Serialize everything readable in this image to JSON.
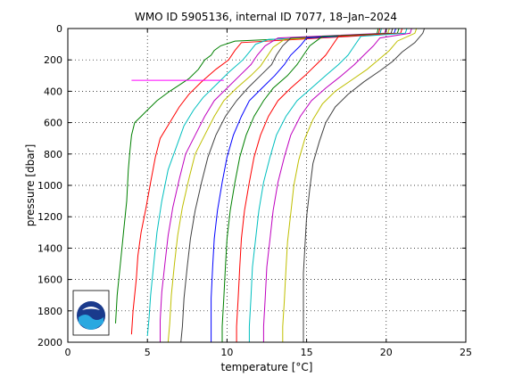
{
  "chart_data": {
    "type": "line",
    "title": "WMO ID 5905136, internal ID 7077, 18–Jan–2024",
    "xlabel": "temperature [°C]",
    "ylabel": "pressure [dbar]",
    "xlim": [
      0,
      25
    ],
    "ylim": [
      2000,
      0
    ],
    "y_reversed": true,
    "grid": true,
    "xticks": [
      "0",
      "5",
      "10",
      "15",
      "20",
      "25"
    ],
    "yticks": [
      "0",
      "200",
      "400",
      "600",
      "800",
      "1000",
      "1200",
      "1400",
      "1600",
      "1800",
      "2000"
    ],
    "series": [
      {
        "color": "#008000",
        "points": [
          [
            19.5,
            0
          ],
          [
            19.4,
            40
          ],
          [
            10.5,
            80
          ],
          [
            9.6,
            110
          ],
          [
            9.2,
            140
          ],
          [
            9.0,
            170
          ],
          [
            8.6,
            200
          ],
          [
            8.2,
            260
          ],
          [
            7.6,
            320
          ],
          [
            7.0,
            360
          ],
          [
            6.4,
            400
          ],
          [
            5.6,
            460
          ],
          [
            5.0,
            520
          ],
          [
            4.6,
            560
          ],
          [
            4.2,
            600
          ],
          [
            4.0,
            680
          ],
          [
            3.9,
            780
          ],
          [
            3.8,
            900
          ],
          [
            3.7,
            1100
          ],
          [
            3.5,
            1300
          ],
          [
            3.3,
            1500
          ],
          [
            3.1,
            1700
          ],
          [
            3.0,
            1880
          ]
        ]
      },
      {
        "color": "#ff0000",
        "points": [
          [
            19.6,
            0
          ],
          [
            19.5,
            40
          ],
          [
            10.9,
            90
          ],
          [
            10.5,
            140
          ],
          [
            10.1,
            200
          ],
          [
            9.3,
            260
          ],
          [
            8.4,
            340
          ],
          [
            7.6,
            420
          ],
          [
            7.0,
            500
          ],
          [
            6.4,
            600
          ],
          [
            5.8,
            700
          ],
          [
            5.5,
            820
          ],
          [
            5.2,
            980
          ],
          [
            4.9,
            1150
          ],
          [
            4.6,
            1300
          ],
          [
            4.4,
            1450
          ],
          [
            4.3,
            1600
          ],
          [
            4.1,
            1800
          ],
          [
            4.0,
            1950
          ]
        ]
      },
      {
        "color": "#00bfbf",
        "points": [
          [
            19.7,
            0
          ],
          [
            19.6,
            40
          ],
          [
            12.6,
            70
          ],
          [
            11.8,
            100
          ],
          [
            11.4,
            150
          ],
          [
            11.0,
            200
          ],
          [
            10.1,
            280
          ],
          [
            9.3,
            360
          ],
          [
            8.5,
            440
          ],
          [
            7.9,
            520
          ],
          [
            7.3,
            620
          ],
          [
            6.8,
            760
          ],
          [
            6.3,
            900
          ],
          [
            5.9,
            1100
          ],
          [
            5.6,
            1300
          ],
          [
            5.4,
            1500
          ],
          [
            5.2,
            1700
          ],
          [
            5.1,
            1850
          ],
          [
            5.0,
            1960
          ]
        ]
      },
      {
        "color": "#bf00bf",
        "points": [
          [
            20.0,
            0
          ],
          [
            19.9,
            30
          ],
          [
            13.2,
            60
          ],
          [
            12.4,
            110
          ],
          [
            11.9,
            170
          ],
          [
            11.5,
            230
          ],
          [
            10.8,
            300
          ],
          [
            10.0,
            380
          ],
          [
            9.2,
            460
          ],
          [
            8.6,
            560
          ],
          [
            8.0,
            680
          ],
          [
            7.4,
            800
          ],
          [
            7.0,
            960
          ],
          [
            6.6,
            1140
          ],
          [
            6.3,
            1320
          ],
          [
            6.1,
            1500
          ],
          [
            5.9,
            1680
          ],
          [
            5.8,
            1860
          ],
          [
            5.8,
            2000
          ]
        ]
      },
      {
        "color": "#bfbf00",
        "points": [
          [
            20.2,
            0
          ],
          [
            20.1,
            30
          ],
          [
            13.6,
            70
          ],
          [
            12.9,
            120
          ],
          [
            12.5,
            180
          ],
          [
            12.1,
            240
          ],
          [
            11.5,
            300
          ],
          [
            10.6,
            380
          ],
          [
            9.8,
            460
          ],
          [
            9.2,
            560
          ],
          [
            8.6,
            680
          ],
          [
            8.0,
            800
          ],
          [
            7.6,
            960
          ],
          [
            7.2,
            1140
          ],
          [
            6.9,
            1320
          ],
          [
            6.7,
            1500
          ],
          [
            6.5,
            1700
          ],
          [
            6.4,
            1880
          ],
          [
            6.3,
            2000
          ]
        ]
      },
      {
        "color": "#404040",
        "points": [
          [
            20.4,
            0
          ],
          [
            20.3,
            30
          ],
          [
            14.0,
            60
          ],
          [
            13.5,
            110
          ],
          [
            13.1,
            170
          ],
          [
            12.8,
            230
          ],
          [
            12.1,
            300
          ],
          [
            11.3,
            380
          ],
          [
            10.6,
            460
          ],
          [
            9.9,
            560
          ],
          [
            9.3,
            680
          ],
          [
            8.8,
            820
          ],
          [
            8.4,
            980
          ],
          [
            8.0,
            1160
          ],
          [
            7.7,
            1340
          ],
          [
            7.5,
            1520
          ],
          [
            7.3,
            1720
          ],
          [
            7.2,
            1900
          ],
          [
            7.1,
            2000
          ]
        ]
      },
      {
        "color": "#0000ff",
        "points": [
          [
            20.6,
            0
          ],
          [
            20.5,
            30
          ],
          [
            15.0,
            60
          ],
          [
            14.6,
            110
          ],
          [
            14.0,
            170
          ],
          [
            13.6,
            230
          ],
          [
            13.0,
            300
          ],
          [
            12.2,
            380
          ],
          [
            11.4,
            460
          ],
          [
            10.9,
            560
          ],
          [
            10.4,
            680
          ],
          [
            10.0,
            820
          ],
          [
            9.7,
            980
          ],
          [
            9.4,
            1160
          ],
          [
            9.2,
            1340
          ],
          [
            9.1,
            1520
          ],
          [
            9.0,
            1720
          ],
          [
            9.0,
            1900
          ],
          [
            9.0,
            2000
          ]
        ]
      },
      {
        "color": "#008000",
        "points": [
          [
            20.8,
            0
          ],
          [
            20.7,
            30
          ],
          [
            16.0,
            50
          ],
          [
            15.2,
            110
          ],
          [
            14.8,
            170
          ],
          [
            14.4,
            230
          ],
          [
            13.8,
            300
          ],
          [
            12.9,
            380
          ],
          [
            12.3,
            460
          ],
          [
            11.7,
            560
          ],
          [
            11.2,
            680
          ],
          [
            10.8,
            820
          ],
          [
            10.5,
            980
          ],
          [
            10.2,
            1160
          ],
          [
            10.0,
            1340
          ],
          [
            9.9,
            1520
          ],
          [
            9.8,
            1720
          ],
          [
            9.7,
            1900
          ],
          [
            9.7,
            2000
          ]
        ]
      },
      {
        "color": "#ff0000",
        "points": [
          [
            21.0,
            0
          ],
          [
            20.9,
            30
          ],
          [
            17.0,
            50
          ],
          [
            16.6,
            110
          ],
          [
            16.2,
            170
          ],
          [
            15.6,
            230
          ],
          [
            14.9,
            300
          ],
          [
            14.0,
            380
          ],
          [
            13.2,
            460
          ],
          [
            12.6,
            560
          ],
          [
            12.1,
            680
          ],
          [
            11.7,
            820
          ],
          [
            11.4,
            980
          ],
          [
            11.1,
            1160
          ],
          [
            10.9,
            1340
          ],
          [
            10.8,
            1520
          ],
          [
            10.7,
            1720
          ],
          [
            10.6,
            1900
          ],
          [
            10.6,
            2000
          ]
        ]
      },
      {
        "color": "#00bfbf",
        "points": [
          [
            21.3,
            0
          ],
          [
            21.2,
            30
          ],
          [
            18.4,
            50
          ],
          [
            18.0,
            110
          ],
          [
            17.6,
            170
          ],
          [
            17.0,
            230
          ],
          [
            16.2,
            300
          ],
          [
            15.3,
            380
          ],
          [
            14.4,
            460
          ],
          [
            13.7,
            560
          ],
          [
            13.1,
            680
          ],
          [
            12.7,
            820
          ],
          [
            12.3,
            980
          ],
          [
            12.0,
            1160
          ],
          [
            11.8,
            1340
          ],
          [
            11.6,
            1520
          ],
          [
            11.5,
            1720
          ],
          [
            11.4,
            1900
          ],
          [
            11.4,
            2000
          ]
        ]
      },
      {
        "color": "#bf00bf",
        "points": [
          [
            21.6,
            0
          ],
          [
            21.5,
            30
          ],
          [
            19.6,
            60
          ],
          [
            19.2,
            110
          ],
          [
            18.6,
            170
          ],
          [
            18.0,
            230
          ],
          [
            17.2,
            300
          ],
          [
            16.2,
            380
          ],
          [
            15.3,
            460
          ],
          [
            14.6,
            560
          ],
          [
            14.0,
            680
          ],
          [
            13.6,
            820
          ],
          [
            13.2,
            980
          ],
          [
            12.9,
            1160
          ],
          [
            12.7,
            1340
          ],
          [
            12.5,
            1520
          ],
          [
            12.4,
            1720
          ],
          [
            12.3,
            1900
          ],
          [
            12.3,
            2000
          ]
        ]
      },
      {
        "color": "#bfbf00",
        "points": [
          [
            21.9,
            0
          ],
          [
            21.8,
            30
          ],
          [
            20.7,
            80
          ],
          [
            20.2,
            140
          ],
          [
            19.5,
            200
          ],
          [
            18.8,
            260
          ],
          [
            17.8,
            330
          ],
          [
            16.8,
            400
          ],
          [
            16.0,
            480
          ],
          [
            15.4,
            580
          ],
          [
            14.9,
            700
          ],
          [
            14.5,
            840
          ],
          [
            14.2,
            1000
          ],
          [
            14.0,
            1180
          ],
          [
            13.8,
            1360
          ],
          [
            13.7,
            1540
          ],
          [
            13.6,
            1740
          ],
          [
            13.5,
            1900
          ],
          [
            13.5,
            2000
          ]
        ]
      },
      {
        "color": "#404040",
        "points": [
          [
            22.4,
            0
          ],
          [
            22.3,
            30
          ],
          [
            21.8,
            90
          ],
          [
            21.0,
            150
          ],
          [
            20.4,
            210
          ],
          [
            19.6,
            270
          ],
          [
            18.6,
            340
          ],
          [
            17.6,
            420
          ],
          [
            16.8,
            500
          ],
          [
            16.2,
            600
          ],
          [
            15.8,
            720
          ],
          [
            15.4,
            860
          ],
          [
            15.2,
            1020
          ],
          [
            15.0,
            1200
          ],
          [
            14.9,
            1380
          ],
          [
            14.8,
            1560
          ],
          [
            14.8,
            1760
          ],
          [
            14.8,
            1920
          ],
          [
            14.8,
            2000
          ]
        ]
      },
      {
        "color": "#ff00ff",
        "points": [
          [
            9.8,
            330
          ],
          [
            9.0,
            330
          ],
          [
            7.0,
            330
          ],
          [
            5.0,
            330
          ],
          [
            4.0,
            330
          ]
        ]
      }
    ]
  }
}
